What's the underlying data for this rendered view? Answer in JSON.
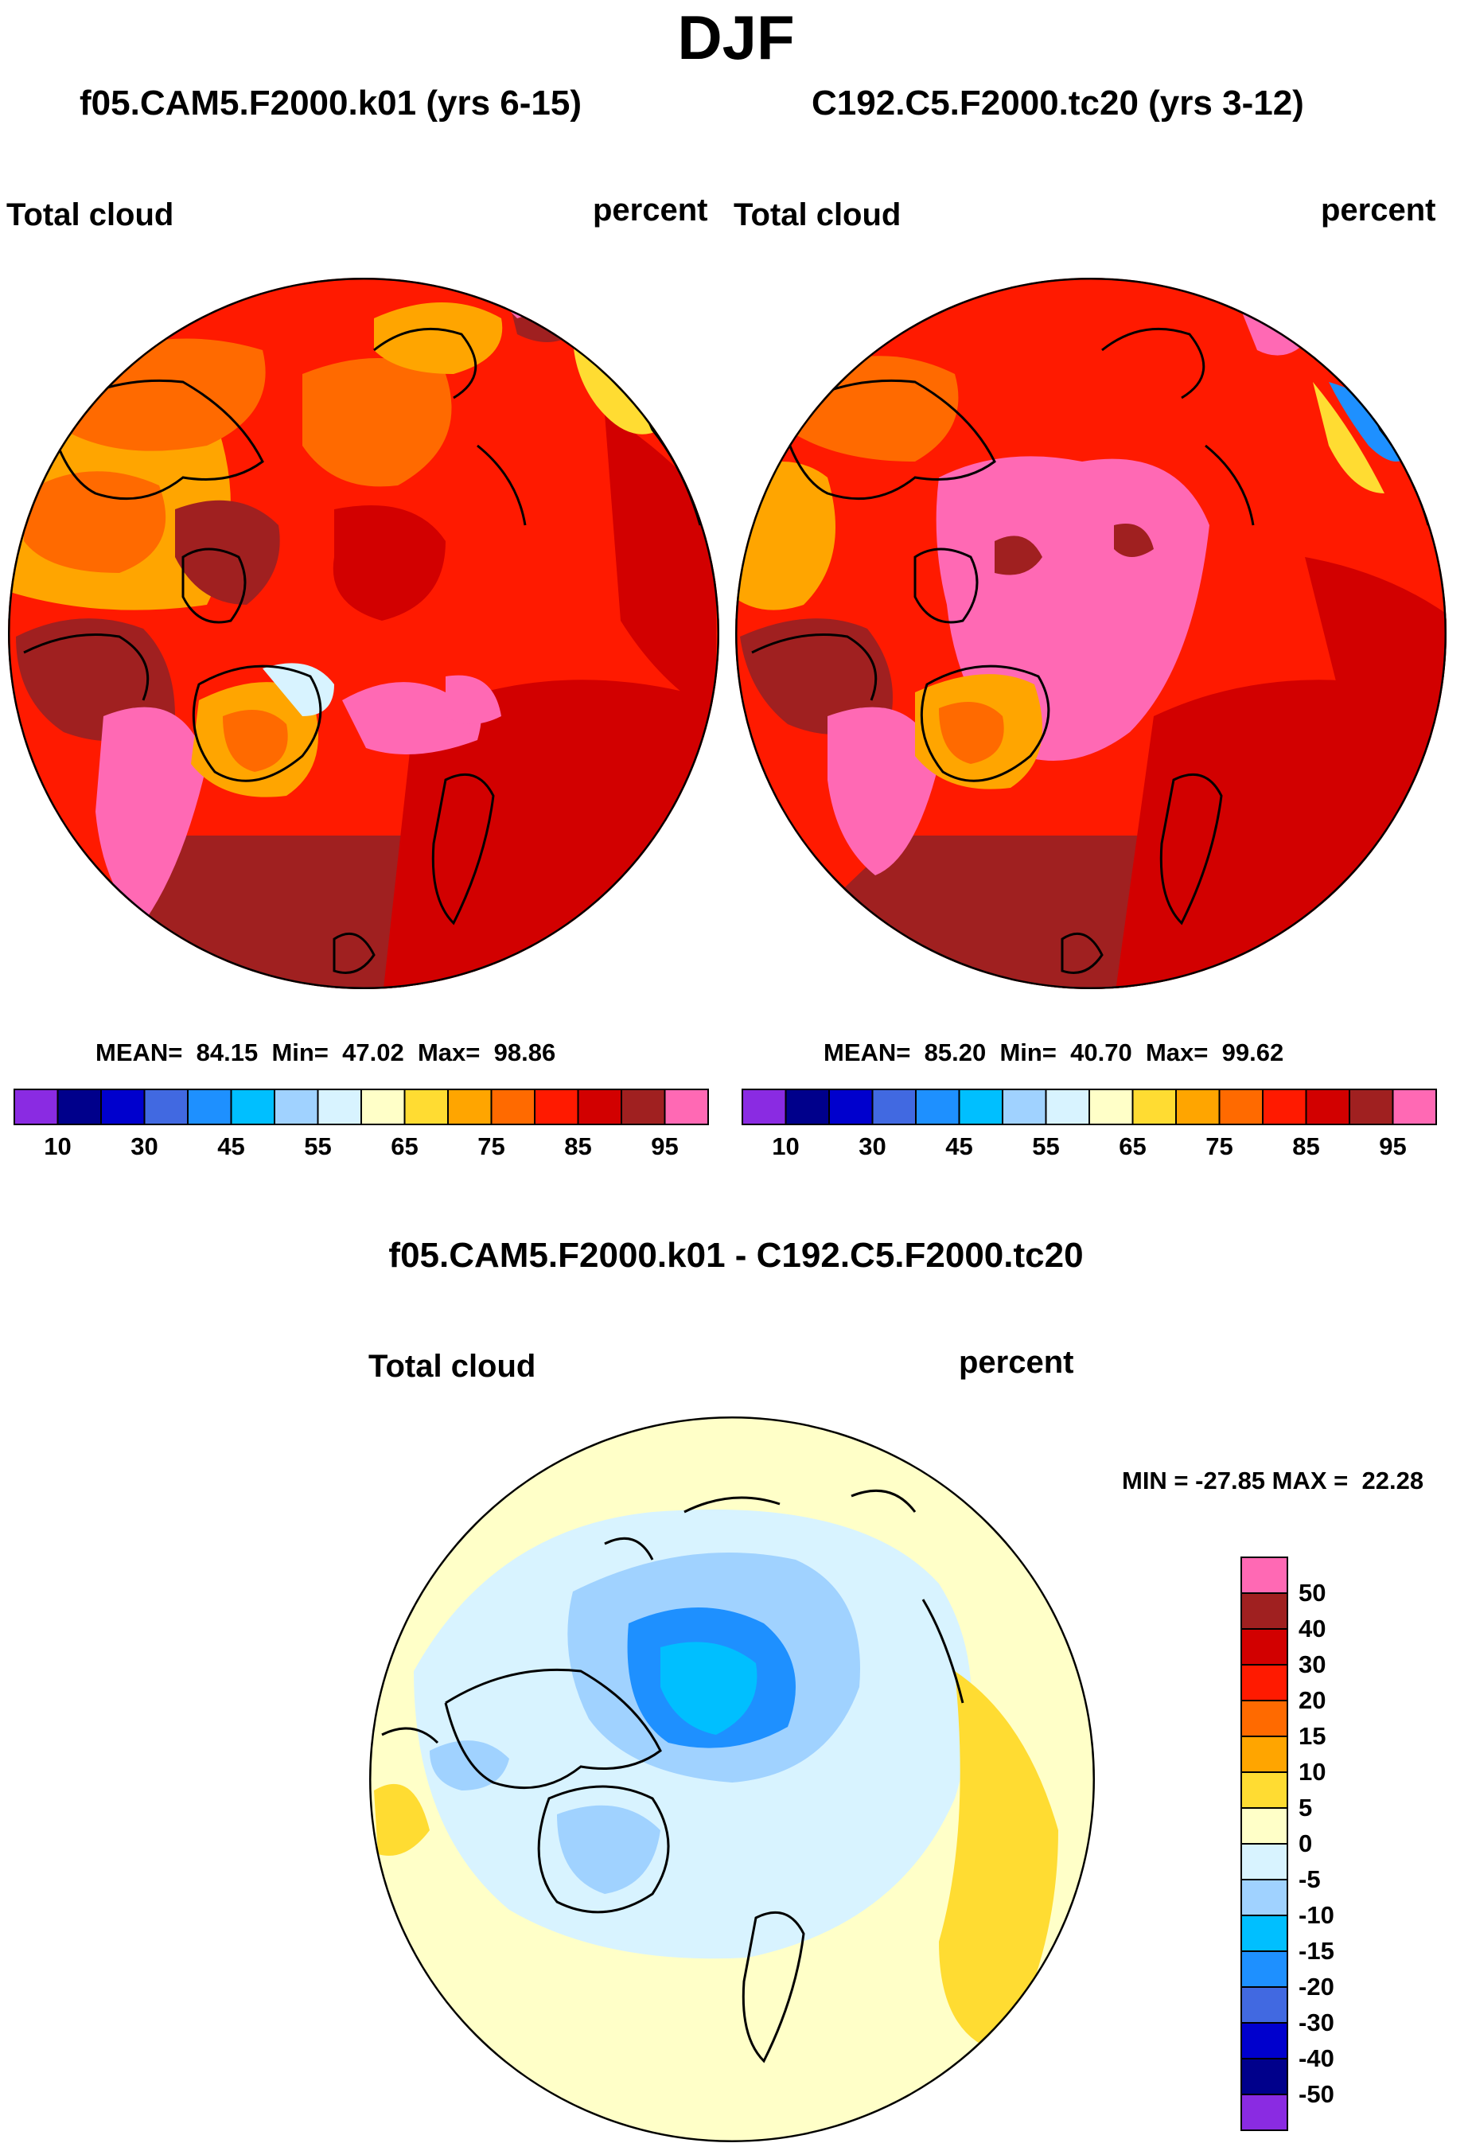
{
  "page": {
    "season": "DJF",
    "diff_title": "f05.CAM5.F2000.k01 - C192.C5.F2000.tc20"
  },
  "panels": [
    {
      "case_title": "f05.CAM5.F2000.k01 (yrs 6-15)",
      "variable": "Total cloud",
      "units": "percent",
      "stats": {
        "mean_label": "MEAN=",
        "mean": "84.15",
        "min_label": "Min=",
        "min": "47.02",
        "max_label": "Max=",
        "max": "98.86"
      }
    },
    {
      "case_title": "C192.C5.F2000.tc20 (yrs 3-12)",
      "variable": "Total cloud",
      "units": "percent",
      "stats": {
        "mean_label": "MEAN=",
        "mean": "85.20",
        "min_label": "Min=",
        "min": "40.70",
        "max_label": "Max=",
        "max": "99.62"
      }
    }
  ],
  "diff_panel": {
    "variable": "Total cloud",
    "units": "percent",
    "minmax_text": "MIN = -27.85 MAX =  22.28"
  },
  "chart_data": [
    {
      "type": "heatmap",
      "projection": "north polar stereographic",
      "title": "f05.CAM5.F2000.k01 (yrs 6-15)",
      "variable": "Total cloud",
      "units": "percent",
      "mean": 84.15,
      "min": 47.02,
      "max": 98.86,
      "legend_placement": "bottom",
      "levels": [
        10,
        30,
        45,
        55,
        65,
        75,
        85,
        95
      ],
      "tick_labels": [
        "10",
        "30",
        "45",
        "55",
        "65",
        "75",
        "85",
        "95"
      ],
      "colors": [
        "#8a2be2",
        "#00008b",
        "#0000cd",
        "#4169e1",
        "#1e90ff",
        "#00bfff",
        "#a0d2ff",
        "#d8f3ff",
        "#ffffc8",
        "#ffdc32",
        "#ffa500",
        "#ff6a00",
        "#ff1a00",
        "#d20000",
        "#a02020",
        "#ff69b4"
      ]
    },
    {
      "type": "heatmap",
      "projection": "north polar stereographic",
      "title": "C192.C5.F2000.tc20 (yrs 3-12)",
      "variable": "Total cloud",
      "units": "percent",
      "mean": 85.2,
      "min": 40.7,
      "max": 99.62,
      "legend_placement": "bottom",
      "levels": [
        10,
        30,
        45,
        55,
        65,
        75,
        85,
        95
      ],
      "tick_labels": [
        "10",
        "30",
        "45",
        "55",
        "65",
        "75",
        "85",
        "95"
      ],
      "colors": [
        "#8a2be2",
        "#00008b",
        "#0000cd",
        "#4169e1",
        "#1e90ff",
        "#00bfff",
        "#a0d2ff",
        "#d8f3ff",
        "#ffffc8",
        "#ffdc32",
        "#ffa500",
        "#ff6a00",
        "#ff1a00",
        "#d20000",
        "#a02020",
        "#ff69b4"
      ]
    },
    {
      "type": "heatmap",
      "projection": "north polar stereographic",
      "title": "f05.CAM5.F2000.k01 - C192.C5.F2000.tc20",
      "variable": "Total cloud",
      "units": "percent",
      "min": -27.85,
      "max": 22.28,
      "legend_placement": "right",
      "levels": [
        -50,
        -40,
        -30,
        -20,
        -15,
        -10,
        -5,
        0,
        5,
        10,
        15,
        20,
        30,
        40,
        50
      ],
      "tick_labels": [
        "50",
        "40",
        "30",
        "20",
        "15",
        "10",
        "5",
        "0",
        "-5",
        "-10",
        "-15",
        "-20",
        "-30",
        "-40",
        "-50"
      ],
      "colors": [
        "#8a2be2",
        "#00008b",
        "#0000cd",
        "#4169e1",
        "#1e90ff",
        "#00bfff",
        "#a0d2ff",
        "#d8f3ff",
        "#ffffc8",
        "#ffdc32",
        "#ffa500",
        "#ff6a00",
        "#ff1a00",
        "#d20000",
        "#a02020",
        "#ff69b4"
      ]
    }
  ]
}
